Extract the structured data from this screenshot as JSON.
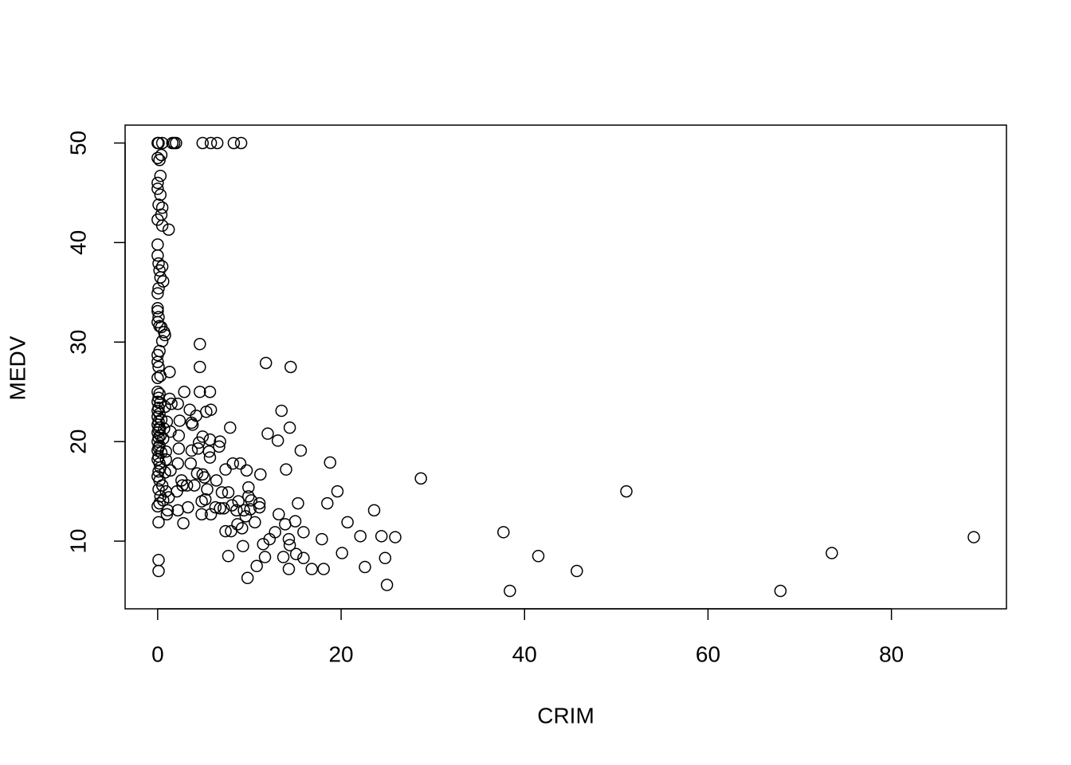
{
  "chart_data": {
    "type": "scatter",
    "x_label": "CRIM",
    "y_label": "MEDV",
    "x": [
      88.98,
      73.5,
      67.9,
      51.1,
      45.7,
      41.5,
      38.4,
      37.7,
      28.7,
      25.9,
      25.0,
      24.8,
      24.4,
      23.6,
      22.6,
      22.1,
      20.7,
      20.1,
      19.6,
      18.8,
      18.5,
      18.1,
      17.9,
      16.8,
      15.9,
      15.9,
      15.6,
      15.3,
      15.0,
      15.1,
      14.5,
      14.4,
      14.3,
      14.4,
      14.3,
      14.0,
      13.9,
      13.7,
      13.5,
      13.2,
      13.1,
      12.8,
      12.2,
      12.0,
      11.8,
      11.7,
      11.5,
      11.1,
      11.2,
      11.1,
      10.8,
      10.6,
      10.2,
      10.1,
      9.9,
      9.8,
      9.9,
      9.7,
      9.6,
      9.4,
      9.3,
      9.2,
      9.1,
      9.0,
      8.8,
      8.7,
      8.6,
      8.3,
      8.2,
      8.1,
      8.0,
      7.9,
      7.7,
      7.7,
      7.4,
      7.4,
      7.2,
      7.0,
      6.8,
      6.7,
      6.8,
      6.5,
      6.4,
      6.3,
      5.8,
      5.8,
      5.7,
      5.7,
      5.8,
      5.7,
      5.6,
      5.4,
      5.3,
      5.2,
      5.1,
      4.9,
      4.9,
      4.9,
      4.8,
      4.8,
      4.6,
      4.6,
      4.6,
      4.5,
      4.4,
      4.3,
      4.2,
      4.0,
      3.8,
      3.7,
      3.7,
      3.6,
      3.5,
      3.3,
      3.2,
      2.9,
      2.8,
      2.7,
      2.6,
      2.4,
      2.3,
      2.3,
      2.2,
      2.2,
      2.1,
      2.2,
      2.0,
      1.8,
      1.6,
      1.5,
      1.3,
      1.4,
      1.4,
      1.3,
      1.2,
      1.2,
      1.1,
      1.0,
      0.8,
      0.7,
      0.6,
      0.5,
      0.4,
      0.3,
      0.5,
      0.4,
      0.5,
      0.3,
      0.2,
      0.1,
      0.0,
      0.0,
      0.0,
      0.0,
      0.1,
      0.0,
      0.0,
      0.0,
      0.1,
      0.2,
      0.5,
      0.3,
      0.1,
      0.0,
      0.0,
      0.0,
      0.1,
      0.0,
      0.2,
      0.4,
      0.5,
      0.2,
      0.0,
      0.0,
      0.1,
      0.3,
      0.0,
      0.0,
      0.2,
      0.1,
      0.0,
      0.3,
      0.1,
      0.0,
      0.2,
      0.0,
      0.4,
      0.1,
      0.0,
      0.2,
      0.1,
      0.0,
      0.3,
      0.1,
      0.0,
      0.2,
      0.1,
      0.0,
      0.4,
      0.1,
      0.0,
      0.2,
      0.3,
      0.1,
      0.0,
      0.2,
      0.5,
      0.1,
      0.3,
      0.6,
      0.2,
      0.0,
      0.1,
      0.1,
      0.1,
      0.9,
      0.9,
      1.0,
      0.8,
      0.7,
      0.6,
      0.9,
      0.8
    ],
    "values": [
      10.4,
      8.8,
      5.0,
      15.0,
      7.0,
      8.5,
      5.0,
      10.9,
      16.3,
      10.4,
      5.6,
      8.3,
      10.5,
      13.1,
      7.4,
      10.5,
      11.9,
      8.8,
      15.0,
      17.9,
      13.8,
      7.2,
      10.2,
      7.2,
      10.9,
      8.3,
      19.1,
      13.8,
      12.0,
      8.7,
      27.5,
      21.4,
      10.2,
      9.6,
      7.2,
      17.2,
      11.7,
      8.4,
      23.1,
      12.7,
      20.1,
      10.9,
      10.2,
      20.8,
      27.9,
      8.4,
      9.7,
      13.4,
      16.7,
      13.8,
      7.5,
      11.9,
      14.1,
      13.2,
      15.4,
      6.3,
      14.5,
      17.1,
      12.5,
      13.1,
      9.5,
      11.3,
      50,
      17.8,
      14.0,
      11.7,
      13.1,
      50,
      17.8,
      13.6,
      11.0,
      21.4,
      8.5,
      14.9,
      11.0,
      17.2,
      13.3,
      14.9,
      20.0,
      19.5,
      13.3,
      50,
      16.1,
      13.4,
      50,
      23.2,
      25.0,
      20.2,
      12.7,
      18.4,
      19.0,
      15.2,
      23.0,
      14.2,
      16.4,
      50,
      16.7,
      20.5,
      12.7,
      14.0,
      29.8,
      27.5,
      25.0,
      19.9,
      19.3,
      16.8,
      22.6,
      15.6,
      21.7,
      19.1,
      21.9,
      17.8,
      23.2,
      13.4,
      15.6,
      25.0,
      11.8,
      15.6,
      16.1,
      22.1,
      20.6,
      19.3,
      23.8,
      17.8,
      15.0,
      13.1,
      50,
      50,
      50,
      23.8,
      24.3,
      21.0,
      17.1,
      27.0,
      41.3,
      14.4,
      13.1,
      12.7,
      30.7,
      31.0,
      36.1,
      50,
      48.8,
      46.7,
      43.5,
      42.8,
      41.7,
      44.8,
      48.3,
      50,
      50,
      48.5,
      46.0,
      45.4,
      43.8,
      42.3,
      39.8,
      38.7,
      37.9,
      37.2,
      37.6,
      36.5,
      35.4,
      34.9,
      33.4,
      33.1,
      32.5,
      32.0,
      31.6,
      31.5,
      30.1,
      29.1,
      28.7,
      28.0,
      27.5,
      26.6,
      26.4,
      25.0,
      24.8,
      24.4,
      24.0,
      23.9,
      23.4,
      23.1,
      22.8,
      22.5,
      22.2,
      22.0,
      21.7,
      21.4,
      21.2,
      20.9,
      20.6,
      20.4,
      20.0,
      19.6,
      19.4,
      19.1,
      18.9,
      18.5,
      18.2,
      17.8,
      17.4,
      17.0,
      16.5,
      16.1,
      15.6,
      15.2,
      14.5,
      14.1,
      13.8,
      13.5,
      11.9,
      8.1,
      7.0,
      15.0,
      19.0,
      22.0,
      23.5,
      21.3,
      20.3,
      18.2,
      16.9
    ],
    "color": "#000000",
    "xlim": [
      -3.55,
      92.54
    ],
    "ylim": [
      3.2,
      51.8
    ],
    "xticks": [
      0,
      20,
      40,
      60,
      80
    ],
    "yticks": [
      10,
      20,
      30,
      40,
      50
    ]
  }
}
